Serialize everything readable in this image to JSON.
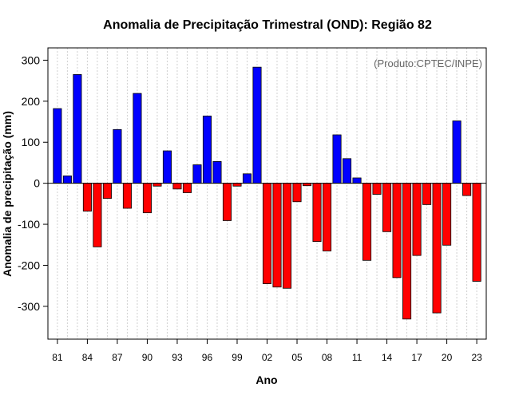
{
  "chart_data": {
    "type": "bar",
    "title": "Anomalia de Precipitação Trimestral (OND): Região 82",
    "xlabel": "Ano",
    "ylabel": "Anomalia de precipitação (mm)",
    "credit": "(Produto:CPTEC/INPE)",
    "ylim": [
      -380,
      330
    ],
    "yticks": [
      -300,
      -200,
      -100,
      0,
      100,
      200,
      300
    ],
    "xtick_labels": [
      "81",
      "84",
      "87",
      "90",
      "93",
      "96",
      "99",
      "02",
      "05",
      "08",
      "11",
      "14",
      "17",
      "20",
      "23"
    ],
    "grid": true,
    "colors": {
      "positive": "#0000ff",
      "negative": "#ff0000"
    },
    "categories": [
      "1981",
      "1982",
      "1983",
      "1984",
      "1985",
      "1986",
      "1987",
      "1988",
      "1989",
      "1990",
      "1991",
      "1992",
      "1993",
      "1994",
      "1995",
      "1996",
      "1997",
      "1998",
      "1999",
      "2000",
      "2001",
      "2002",
      "2003",
      "2004",
      "2005",
      "2006",
      "2007",
      "2008",
      "2009",
      "2010",
      "2011",
      "2012",
      "2013",
      "2014",
      "2015",
      "2016",
      "2017",
      "2018",
      "2019",
      "2020",
      "2021",
      "2022",
      "2023"
    ],
    "values": [
      182,
      18,
      265,
      -68,
      -155,
      -37,
      131,
      -61,
      219,
      -72,
      -7,
      79,
      -14,
      -23,
      45,
      164,
      53,
      -91,
      -7,
      23,
      283,
      -245,
      -253,
      -256,
      -45,
      -6,
      -142,
      -165,
      118,
      60,
      13,
      -188,
      -27,
      -118,
      -230,
      -331,
      -176,
      -52,
      -316,
      -151,
      152,
      -30,
      -239
    ]
  }
}
